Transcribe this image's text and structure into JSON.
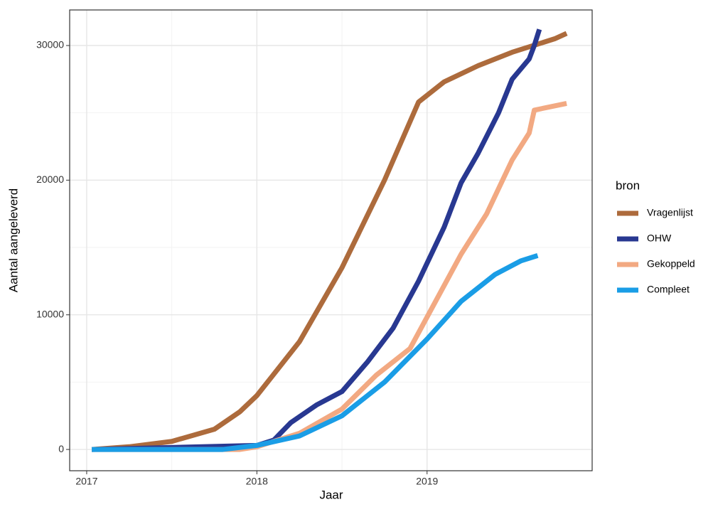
{
  "chart_data": {
    "type": "line",
    "x_label": "Jaar",
    "y_label": "Aantal aangeleverd",
    "legend_title": "bron",
    "xlim": [
      2016.9,
      2019.97
    ],
    "ylim": [
      -1580,
      32640
    ],
    "xticks": [
      2017,
      2018,
      2019
    ],
    "yticks": [
      0,
      10000,
      20000,
      30000
    ],
    "grid": true,
    "minor_grid": true,
    "legend_position": "right",
    "series": [
      {
        "name": "Vragenlijst",
        "color": "#ad6b3c",
        "x": [
          2017.03,
          2017.25,
          2017.5,
          2017.75,
          2017.9,
          2018.0,
          2018.25,
          2018.5,
          2018.75,
          2018.95,
          2019.1,
          2019.3,
          2019.5,
          2019.75,
          2019.82
        ],
        "values": [
          0,
          200,
          600,
          1500,
          2800,
          4000,
          8000,
          13500,
          20000,
          25800,
          27300,
          28500,
          29500,
          30500,
          30900
        ]
      },
      {
        "name": "OHW",
        "color": "#283891",
        "x": [
          2017.03,
          2018.0,
          2018.1,
          2018.2,
          2018.35,
          2018.5,
          2018.65,
          2018.8,
          2018.95,
          2019.1,
          2019.2,
          2019.3,
          2019.42,
          2019.5,
          2019.6,
          2019.63,
          2019.66
        ],
        "values": [
          0,
          300,
          700,
          2000,
          3300,
          4300,
          6500,
          9000,
          12500,
          16500,
          19800,
          22000,
          25000,
          27500,
          29000,
          30000,
          31200
        ]
      },
      {
        "name": "Gekoppeld",
        "color": "#f2a982",
        "x": [
          2017.03,
          2017.9,
          2018.0,
          2018.25,
          2018.5,
          2018.7,
          2018.9,
          2019.05,
          2019.2,
          2019.35,
          2019.5,
          2019.6,
          2019.63,
          2019.82
        ],
        "values": [
          0,
          0,
          200,
          1200,
          3000,
          5500,
          7500,
          11000,
          14500,
          17500,
          21500,
          23500,
          25200,
          25700
        ]
      },
      {
        "name": "Compleet",
        "color": "#1a9de6",
        "x": [
          2017.03,
          2017.8,
          2018.0,
          2018.25,
          2018.5,
          2018.75,
          2019.0,
          2019.2,
          2019.4,
          2019.55,
          2019.65
        ],
        "values": [
          0,
          0,
          300,
          1000,
          2500,
          5000,
          8200,
          11000,
          13000,
          14000,
          14400
        ]
      }
    ]
  }
}
